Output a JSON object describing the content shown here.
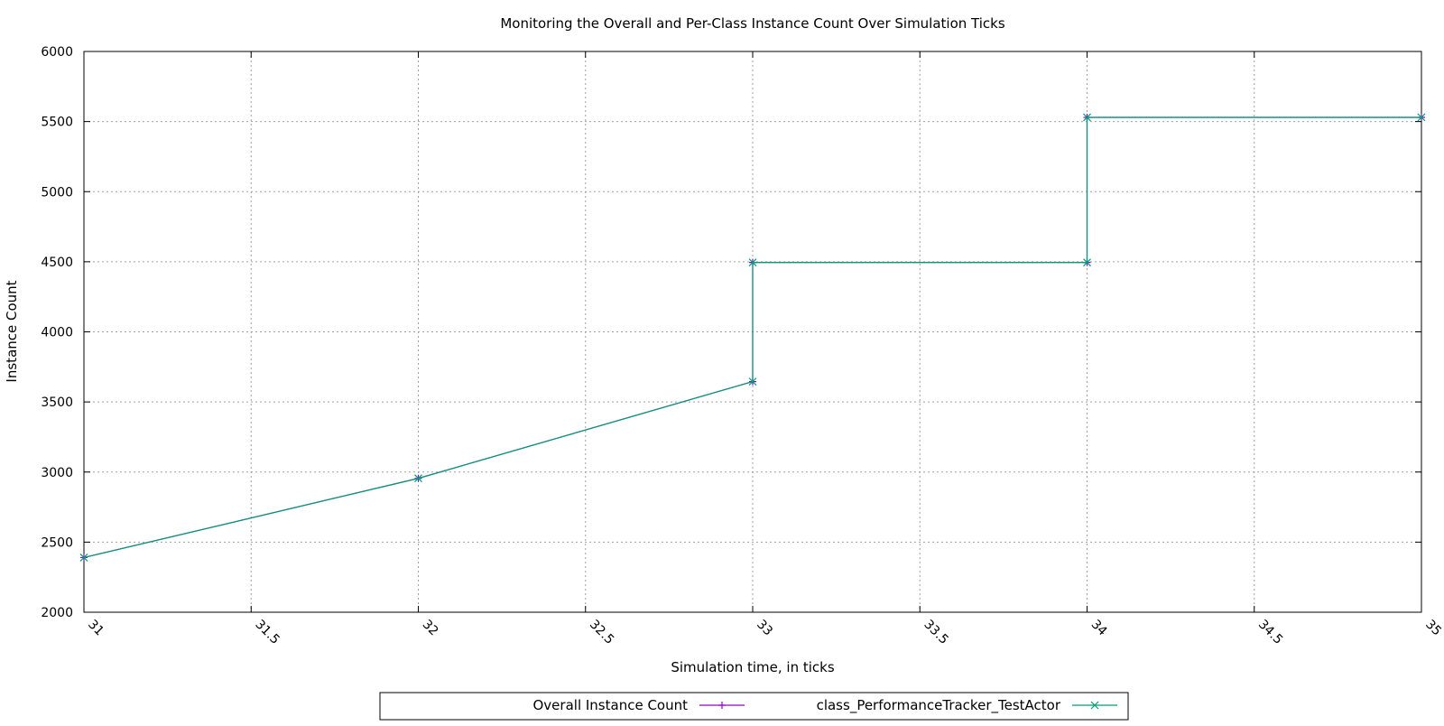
{
  "chart_data": {
    "type": "line",
    "title": "Monitoring the Overall and Per-Class Instance Count Over Simulation Ticks",
    "xlabel": "Simulation time, in ticks",
    "ylabel": "Instance Count",
    "xlim": [
      31,
      35
    ],
    "ylim": [
      2000,
      6000
    ],
    "x_ticks": [
      "31",
      "31.5",
      "32",
      "32.5",
      "33",
      "33.5",
      "34",
      "34.5",
      "35"
    ],
    "y_ticks": [
      "2000",
      "2500",
      "3000",
      "3500",
      "4000",
      "4500",
      "5000",
      "5500",
      "6000"
    ],
    "x_tick_values": [
      31,
      31.5,
      32,
      32.5,
      33,
      33.5,
      34,
      34.5,
      35
    ],
    "y_tick_values": [
      2000,
      2500,
      3000,
      3500,
      4000,
      4500,
      5000,
      5500,
      6000
    ],
    "grid": true,
    "legend_position": "bottom-center",
    "series": [
      {
        "name": "Overall Instance Count",
        "color": "#9400d3",
        "marker": "plus",
        "points": [
          [
            31,
            2390
          ],
          [
            32,
            2955
          ],
          [
            33,
            3645
          ],
          [
            33,
            4495
          ],
          [
            34,
            4495
          ],
          [
            34,
            5530
          ],
          [
            35,
            5530
          ]
        ]
      },
      {
        "name": "class_PerformanceTracker_TestActor",
        "color": "#009e73",
        "marker": "cross",
        "points": [
          [
            31,
            2390
          ],
          [
            32,
            2955
          ],
          [
            33,
            3645
          ],
          [
            33,
            4495
          ],
          [
            34,
            4495
          ],
          [
            34,
            5530
          ],
          [
            35,
            5530
          ]
        ]
      }
    ]
  }
}
